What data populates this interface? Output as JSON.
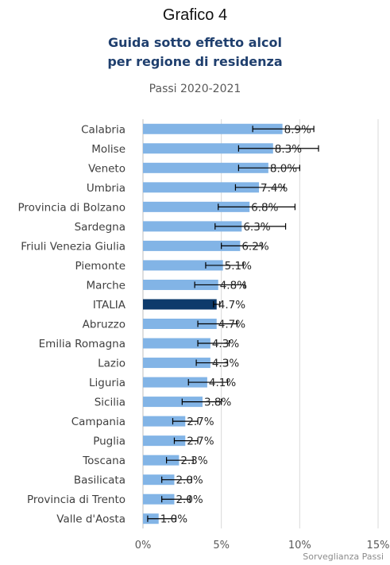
{
  "header": {
    "figure_label": "Grafico 4",
    "title_line1": "Guida sotto effetto alcol",
    "title_line2": "per regione di residenza",
    "subtitle": "Passi 2020-2021"
  },
  "source": "Sorveglianza Passi",
  "colors": {
    "bar": "#82b4e6",
    "highlight": "#0d3a6b",
    "error": "#000000",
    "grid": "#d9d9d9",
    "text": "#404040"
  },
  "chart_data": {
    "type": "bar",
    "orientation": "horizontal",
    "title": "Guida sotto effetto alcol per regione di residenza",
    "subtitle": "Passi 2020-2021",
    "highlight_category": "ITALIA",
    "categories": [
      "Calabria",
      "Molise",
      "Veneto",
      "Umbria",
      "Provincia di Bolzano",
      "Sardegna",
      "Friuli Venezia Giulia",
      "Piemonte",
      "Marche",
      "ITALIA",
      "Abruzzo",
      "Emilia Romagna",
      "Lazio",
      "Liguria",
      "Sicilia",
      "Campania",
      "Puglia",
      "Toscana",
      "Basilicata",
      "Provincia di Trento",
      "Valle d'Aosta"
    ],
    "values": [
      8.9,
      8.3,
      8.0,
      7.4,
      6.8,
      6.3,
      6.2,
      5.1,
      4.8,
      4.7,
      4.7,
      4.3,
      4.3,
      4.1,
      3.8,
      2.7,
      2.7,
      2.3,
      2.0,
      2.0,
      1.0
    ],
    "value_labels": [
      "8.9%",
      "8.3%",
      "8.0%",
      "7.4%",
      "6.8%",
      "6.3%",
      "6.2%",
      "5.1%",
      "4.8%",
      "4.7%",
      "4.7%",
      "4.3%",
      "4.3%",
      "4.1%",
      "3.8%",
      "2.7%",
      "2.7%",
      "2.3%",
      "2.0%",
      "2.0%",
      "1.0%"
    ],
    "ci_low": [
      7.0,
      6.1,
      6.1,
      5.9,
      4.8,
      4.6,
      5.0,
      4.0,
      3.3,
      4.5,
      3.5,
      3.5,
      3.4,
      2.9,
      2.5,
      1.9,
      2.0,
      1.5,
      1.2,
      1.2,
      0.3
    ],
    "ci_high": [
      10.9,
      11.2,
      10.0,
      9.0,
      9.7,
      9.1,
      7.6,
      6.4,
      6.5,
      4.9,
      6.0,
      5.5,
      5.4,
      5.4,
      5.0,
      3.5,
      3.5,
      3.2,
      3.1,
      3.0,
      2.1
    ],
    "xlim": [
      0,
      15
    ],
    "xticks": [
      0,
      5,
      10,
      15
    ],
    "xtick_labels": [
      "0%",
      "5%",
      "10%",
      "15%"
    ],
    "xlabel": "",
    "ylabel": "",
    "grid": true,
    "legend": "none"
  }
}
